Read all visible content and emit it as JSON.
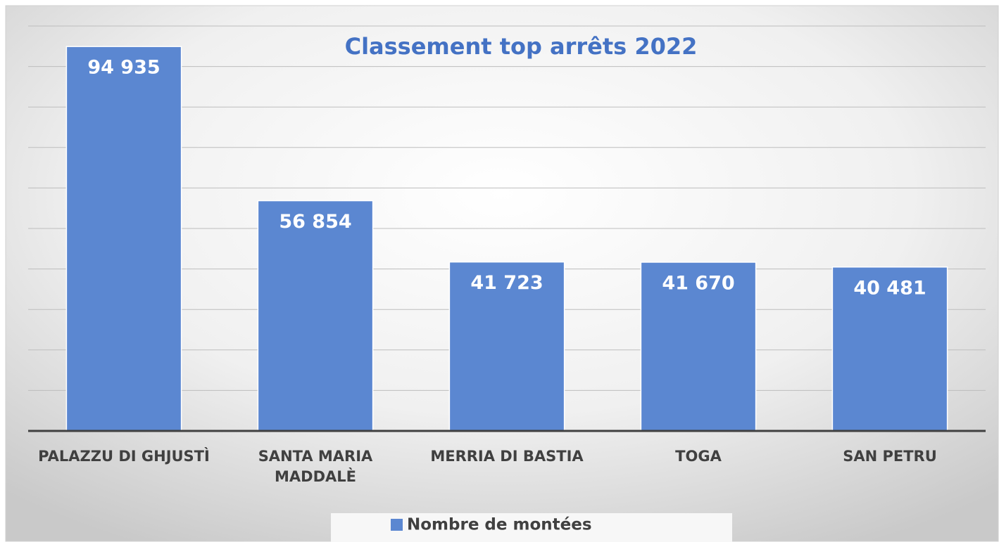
{
  "chart_data": {
    "type": "bar",
    "title": "Classement top arrêts 2022",
    "categories": [
      "PALAZZU DI GHJUSTÌ",
      "SANTA MARIA MADDALÈ",
      "MERRIA DI BASTIA",
      "TOGA",
      "SAN PETRU"
    ],
    "series": [
      {
        "name": "Nombre de montées",
        "color": "#5b87d1",
        "values": [
          94935,
          56854,
          41723,
          41670,
          40481
        ],
        "value_labels": [
          "94 935",
          "56 854",
          "41 723",
          "41 670",
          "40 481"
        ]
      }
    ],
    "ylim": [
      0,
      100000
    ],
    "yticks": [
      0,
      10000,
      20000,
      30000,
      40000,
      50000,
      60000,
      70000,
      80000,
      90000,
      100000
    ],
    "grid": true,
    "legend": "bottom",
    "title_color": "#4472c4"
  }
}
